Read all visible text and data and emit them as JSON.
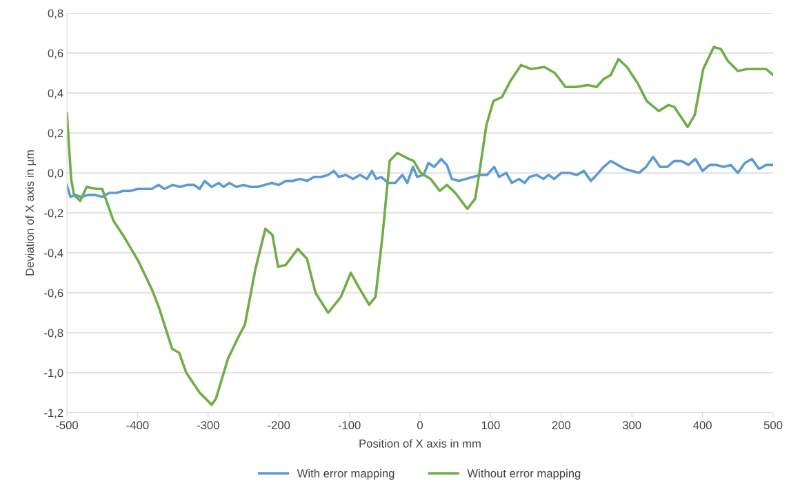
{
  "chart_data": {
    "type": "line",
    "xlabel": "Position of X axis in mm",
    "ylabel": "Deviation of X axis in µm",
    "xlim": [
      -500,
      500
    ],
    "xticks": [
      -500,
      -400,
      -300,
      -200,
      -100,
      0,
      100,
      200,
      300,
      400,
      500
    ],
    "ylim": [
      -1.2,
      0.8
    ],
    "yticks": [
      {
        "value": -1.2,
        "label": "-1,2"
      },
      {
        "value": -1.0,
        "label": "-1,0"
      },
      {
        "value": -0.8,
        "label": "-0,8"
      },
      {
        "value": -0.6,
        "label": "-0,6"
      },
      {
        "value": -0.4,
        "label": "-0,4"
      },
      {
        "value": -0.2,
        "label": "-0,2"
      },
      {
        "value": 0,
        "label": "0,0"
      },
      {
        "value": 0.2,
        "label": "0,2"
      },
      {
        "value": 0.4,
        "label": "0,4"
      },
      {
        "value": 0.6,
        "label": "0,6"
      },
      {
        "value": 0.8,
        "label": "0,8"
      }
    ],
    "grid": "y",
    "legend": "bottom",
    "marker": "none",
    "line_style": "solid",
    "series": [
      {
        "name": "With error mapping",
        "color": "#5b9bd5",
        "x": [
          -500,
          -495,
          -488,
          -480,
          -470,
          -460,
          -450,
          -440,
          -430,
          -420,
          -410,
          -400,
          -390,
          -380,
          -370,
          -362,
          -350,
          -340,
          -330,
          -320,
          -312,
          -305,
          -295,
          -285,
          -278,
          -270,
          -260,
          -250,
          -240,
          -230,
          -220,
          -210,
          -200,
          -190,
          -180,
          -170,
          -160,
          -150,
          -140,
          -130,
          -122,
          -115,
          -105,
          -95,
          -85,
          -75,
          -68,
          -62,
          -55,
          -45,
          -35,
          -25,
          -18,
          -10,
          -4,
          5,
          12,
          20,
          30,
          38,
          45,
          55,
          65,
          75,
          85,
          95,
          105,
          112,
          122,
          130,
          140,
          148,
          155,
          165,
          175,
          182,
          190,
          200,
          212,
          222,
          232,
          242,
          250,
          260,
          270,
          280,
          290,
          300,
          310,
          320,
          330,
          340,
          350,
          360,
          370,
          380,
          390,
          400,
          410,
          420,
          430,
          440,
          450,
          460,
          470,
          480,
          490,
          500
        ],
        "values": [
          -0.06,
          -0.12,
          -0.11,
          -0.12,
          -0.11,
          -0.11,
          -0.12,
          -0.1,
          -0.1,
          -0.09,
          -0.09,
          -0.08,
          -0.08,
          -0.08,
          -0.06,
          -0.08,
          -0.06,
          -0.07,
          -0.06,
          -0.06,
          -0.08,
          -0.04,
          -0.07,
          -0.05,
          -0.07,
          -0.05,
          -0.07,
          -0.06,
          -0.07,
          -0.07,
          -0.06,
          -0.05,
          -0.06,
          -0.04,
          -0.04,
          -0.03,
          -0.04,
          -0.02,
          -0.02,
          -0.01,
          0.01,
          -0.02,
          -0.01,
          -0.03,
          -0.01,
          -0.03,
          0.01,
          -0.03,
          -0.02,
          -0.05,
          -0.05,
          -0.01,
          -0.05,
          0.03,
          -0.02,
          -0.01,
          0.05,
          0.03,
          0.07,
          0.04,
          -0.03,
          -0.04,
          -0.03,
          -0.02,
          -0.01,
          -0.01,
          0.03,
          -0.02,
          0.0,
          -0.05,
          -0.03,
          -0.05,
          -0.02,
          -0.01,
          -0.03,
          -0.01,
          -0.03,
          0.0,
          0.0,
          -0.01,
          0.01,
          -0.04,
          -0.01,
          0.03,
          0.06,
          0.04,
          0.02,
          0.01,
          0.0,
          0.03,
          0.08,
          0.03,
          0.03,
          0.06,
          0.06,
          0.04,
          0.07,
          0.01,
          0.04,
          0.04,
          0.03,
          0.04,
          0.0,
          0.05,
          0.07,
          0.02,
          0.04,
          0.04
        ]
      },
      {
        "name": "Without error mapping",
        "color": "#70ad47",
        "x": [
          -500,
          -494,
          -490,
          -481,
          -472,
          -458,
          -450,
          -434,
          -419,
          -399,
          -380,
          -370,
          -351,
          -341,
          -331,
          -312,
          -295,
          -289,
          -272,
          -257,
          -248,
          -233,
          -219,
          -209,
          -201,
          -190,
          -173,
          -160,
          -148,
          -130,
          -112,
          -98,
          -87,
          -72,
          -63,
          -53,
          -43,
          -32,
          -16,
          -9,
          1,
          15,
          28,
          38,
          50,
          67,
          78,
          84,
          94,
          104,
          116,
          128,
          143,
          157,
          176,
          191,
          206,
          221,
          238,
          250,
          260,
          270,
          281,
          293,
          308,
          321,
          338,
          352,
          360,
          379,
          389,
          401,
          416,
          426,
          436,
          450,
          463,
          480,
          490,
          500
        ],
        "values": [
          0.3,
          -0.03,
          -0.11,
          -0.14,
          -0.07,
          -0.08,
          -0.08,
          -0.24,
          -0.32,
          -0.44,
          -0.58,
          -0.67,
          -0.88,
          -0.9,
          -1.0,
          -1.1,
          -1.16,
          -1.13,
          -0.93,
          -0.82,
          -0.76,
          -0.48,
          -0.28,
          -0.31,
          -0.47,
          -0.46,
          -0.38,
          -0.43,
          -0.6,
          -0.7,
          -0.62,
          -0.5,
          -0.57,
          -0.66,
          -0.62,
          -0.31,
          0.06,
          0.1,
          0.07,
          0.06,
          0.0,
          -0.03,
          -0.09,
          -0.06,
          -0.1,
          -0.18,
          -0.13,
          0.0,
          0.24,
          0.36,
          0.38,
          0.46,
          0.54,
          0.52,
          0.53,
          0.5,
          0.43,
          0.43,
          0.44,
          0.43,
          0.47,
          0.49,
          0.57,
          0.53,
          0.45,
          0.36,
          0.31,
          0.34,
          0.33,
          0.23,
          0.29,
          0.52,
          0.63,
          0.62,
          0.56,
          0.51,
          0.52,
          0.52,
          0.52,
          0.49
        ]
      }
    ]
  }
}
